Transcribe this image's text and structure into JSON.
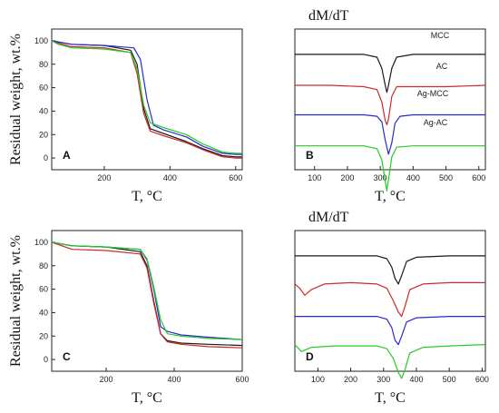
{
  "colors": {
    "black": "#1a1a1a",
    "red": "#cc2a2a",
    "blue": "#2a2acc",
    "green": "#22cc22"
  },
  "chart_data": [
    {
      "panel": "A",
      "type": "line",
      "xlabel": "T, °C",
      "ylabel": "Residual weight, wt.%",
      "xlim": [
        40,
        620
      ],
      "ylim": [
        -10,
        110
      ],
      "xticks": [
        200,
        400,
        600
      ],
      "yticks": [
        0,
        20,
        40,
        60,
        80,
        100
      ],
      "series": [
        {
          "color": "black",
          "x": [
            40,
            60,
            100,
            200,
            280,
            300,
            320,
            340,
            380,
            450,
            500,
            560,
            600,
            620
          ],
          "y": [
            100,
            99,
            97,
            96,
            92,
            80,
            42,
            25,
            21,
            14,
            8,
            2,
            1,
            1
          ]
        },
        {
          "color": "red",
          "x": [
            40,
            60,
            100,
            200,
            280,
            300,
            320,
            340,
            380,
            450,
            500,
            560,
            600,
            620
          ],
          "y": [
            100,
            98,
            95,
            94,
            90,
            72,
            38,
            23,
            19,
            13,
            7,
            1,
            0,
            0
          ]
        },
        {
          "color": "blue",
          "x": [
            40,
            60,
            100,
            200,
            290,
            310,
            330,
            350,
            380,
            450,
            500,
            560,
            600,
            620
          ],
          "y": [
            100,
            99,
            97,
            96,
            94,
            84,
            50,
            28,
            24,
            18,
            10,
            4,
            3,
            3
          ]
        },
        {
          "color": "green",
          "x": [
            40,
            60,
            100,
            200,
            280,
            300,
            320,
            340,
            380,
            450,
            500,
            560,
            600,
            620
          ],
          "y": [
            100,
            97,
            94,
            93,
            90,
            76,
            45,
            30,
            26,
            20,
            12,
            5,
            4,
            4
          ]
        }
      ]
    },
    {
      "panel": "B",
      "type": "line",
      "title": "dM/dT",
      "xlabel": "T, °C",
      "xlim": [
        40,
        620
      ],
      "xticks": [
        100,
        200,
        300,
        400,
        500,
        600
      ],
      "series_labels": [
        "MCC",
        "AC",
        "Ag-MCC",
        "Ag-AC"
      ],
      "series": [
        {
          "color": "black",
          "offset": 0.82,
          "x": [
            40,
            150,
            250,
            290,
            305,
            315,
            320,
            325,
            335,
            350,
            400,
            500,
            620
          ],
          "y": [
            0,
            0,
            0,
            0.02,
            0.1,
            0.22,
            0.27,
            0.22,
            0.1,
            0.02,
            0,
            0,
            0
          ]
        },
        {
          "color": "red",
          "offset": 0.6,
          "x": [
            40,
            150,
            250,
            290,
            305,
            315,
            320,
            325,
            335,
            350,
            400,
            500,
            620
          ],
          "y": [
            0,
            0,
            0.01,
            0.03,
            0.12,
            0.25,
            0.28,
            0.24,
            0.08,
            0.01,
            0.01,
            0.01,
            0
          ]
        },
        {
          "color": "blue",
          "offset": 0.39,
          "x": [
            40,
            150,
            250,
            290,
            305,
            315,
            325,
            335,
            345,
            360,
            400,
            500,
            620
          ],
          "y": [
            0,
            0,
            0,
            0.01,
            0.05,
            0.18,
            0.28,
            0.2,
            0.06,
            0.01,
            0,
            0,
            0
          ]
        },
        {
          "color": "green",
          "offset": 0.17,
          "x": [
            40,
            150,
            250,
            290,
            305,
            315,
            320,
            325,
            335,
            350,
            400,
            500,
            620
          ],
          "y": [
            0,
            0,
            0,
            0.02,
            0.1,
            0.25,
            0.32,
            0.24,
            0.08,
            0.01,
            0,
            0,
            0
          ]
        }
      ]
    },
    {
      "panel": "C",
      "type": "line",
      "xlabel": "T, °C",
      "ylabel": "Residual weight, wt.%",
      "xlim": [
        40,
        600
      ],
      "ylim": [
        -10,
        110
      ],
      "xticks": [
        200,
        400,
        600
      ],
      "yticks": [
        0,
        20,
        40,
        60,
        80,
        100
      ],
      "series": [
        {
          "color": "black",
          "x": [
            40,
            60,
            100,
            200,
            300,
            320,
            340,
            360,
            380,
            420,
            500,
            600
          ],
          "y": [
            100,
            99,
            97,
            96,
            92,
            80,
            50,
            22,
            16,
            14,
            13,
            12
          ]
        },
        {
          "color": "red",
          "x": [
            40,
            60,
            100,
            200,
            300,
            320,
            340,
            360,
            380,
            420,
            500,
            600
          ],
          "y": [
            100,
            98,
            94,
            93,
            90,
            78,
            48,
            22,
            15,
            13,
            11,
            10
          ]
        },
        {
          "color": "blue",
          "x": [
            40,
            60,
            100,
            200,
            300,
            320,
            340,
            360,
            380,
            420,
            500,
            600
          ],
          "y": [
            100,
            99,
            97,
            96,
            94,
            85,
            60,
            28,
            24,
            21,
            19,
            17
          ]
        },
        {
          "color": "green",
          "x": [
            40,
            60,
            100,
            200,
            300,
            320,
            340,
            360,
            380,
            420,
            500,
            600
          ],
          "y": [
            100,
            99,
            97,
            96,
            94,
            86,
            62,
            34,
            22,
            20,
            18,
            17
          ]
        }
      ]
    },
    {
      "panel": "D",
      "type": "line",
      "title": "dM/dT",
      "xlabel": "T, °C",
      "xlim": [
        30,
        610
      ],
      "xticks": [
        100,
        200,
        300,
        400,
        500,
        600
      ],
      "series": [
        {
          "color": "black",
          "offset": 0.82,
          "x": [
            30,
            150,
            280,
            310,
            325,
            335,
            345,
            355,
            370,
            400,
            500,
            610
          ],
          "y": [
            0,
            0,
            0,
            0.02,
            0.08,
            0.16,
            0.2,
            0.14,
            0.04,
            0.01,
            0,
            0
          ]
        },
        {
          "color": "red",
          "offset": 0.64,
          "x": [
            30,
            45,
            60,
            80,
            120,
            200,
            280,
            310,
            330,
            345,
            355,
            365,
            380,
            420,
            500,
            610
          ],
          "y": [
            0.02,
            0.05,
            0.1,
            0.06,
            0.02,
            0.01,
            0.02,
            0.05,
            0.14,
            0.22,
            0.25,
            0.18,
            0.06,
            0.02,
            0.01,
            0.01
          ]
        },
        {
          "color": "blue",
          "offset": 0.39,
          "x": [
            30,
            150,
            280,
            310,
            325,
            335,
            345,
            355,
            370,
            400,
            500,
            610
          ],
          "y": [
            0,
            0,
            0,
            0.02,
            0.08,
            0.17,
            0.2,
            0.14,
            0.04,
            0.01,
            0,
            0
          ]
        },
        {
          "color": "green",
          "offset": 0.19,
          "x": [
            30,
            50,
            80,
            150,
            200,
            280,
            310,
            330,
            345,
            355,
            365,
            380,
            420,
            500,
            610
          ],
          "y": [
            0,
            0.05,
            0.02,
            0.01,
            0.01,
            0.01,
            0.03,
            0.1,
            0.2,
            0.24,
            0.18,
            0.06,
            0.02,
            0.01,
            0
          ]
        }
      ]
    }
  ]
}
